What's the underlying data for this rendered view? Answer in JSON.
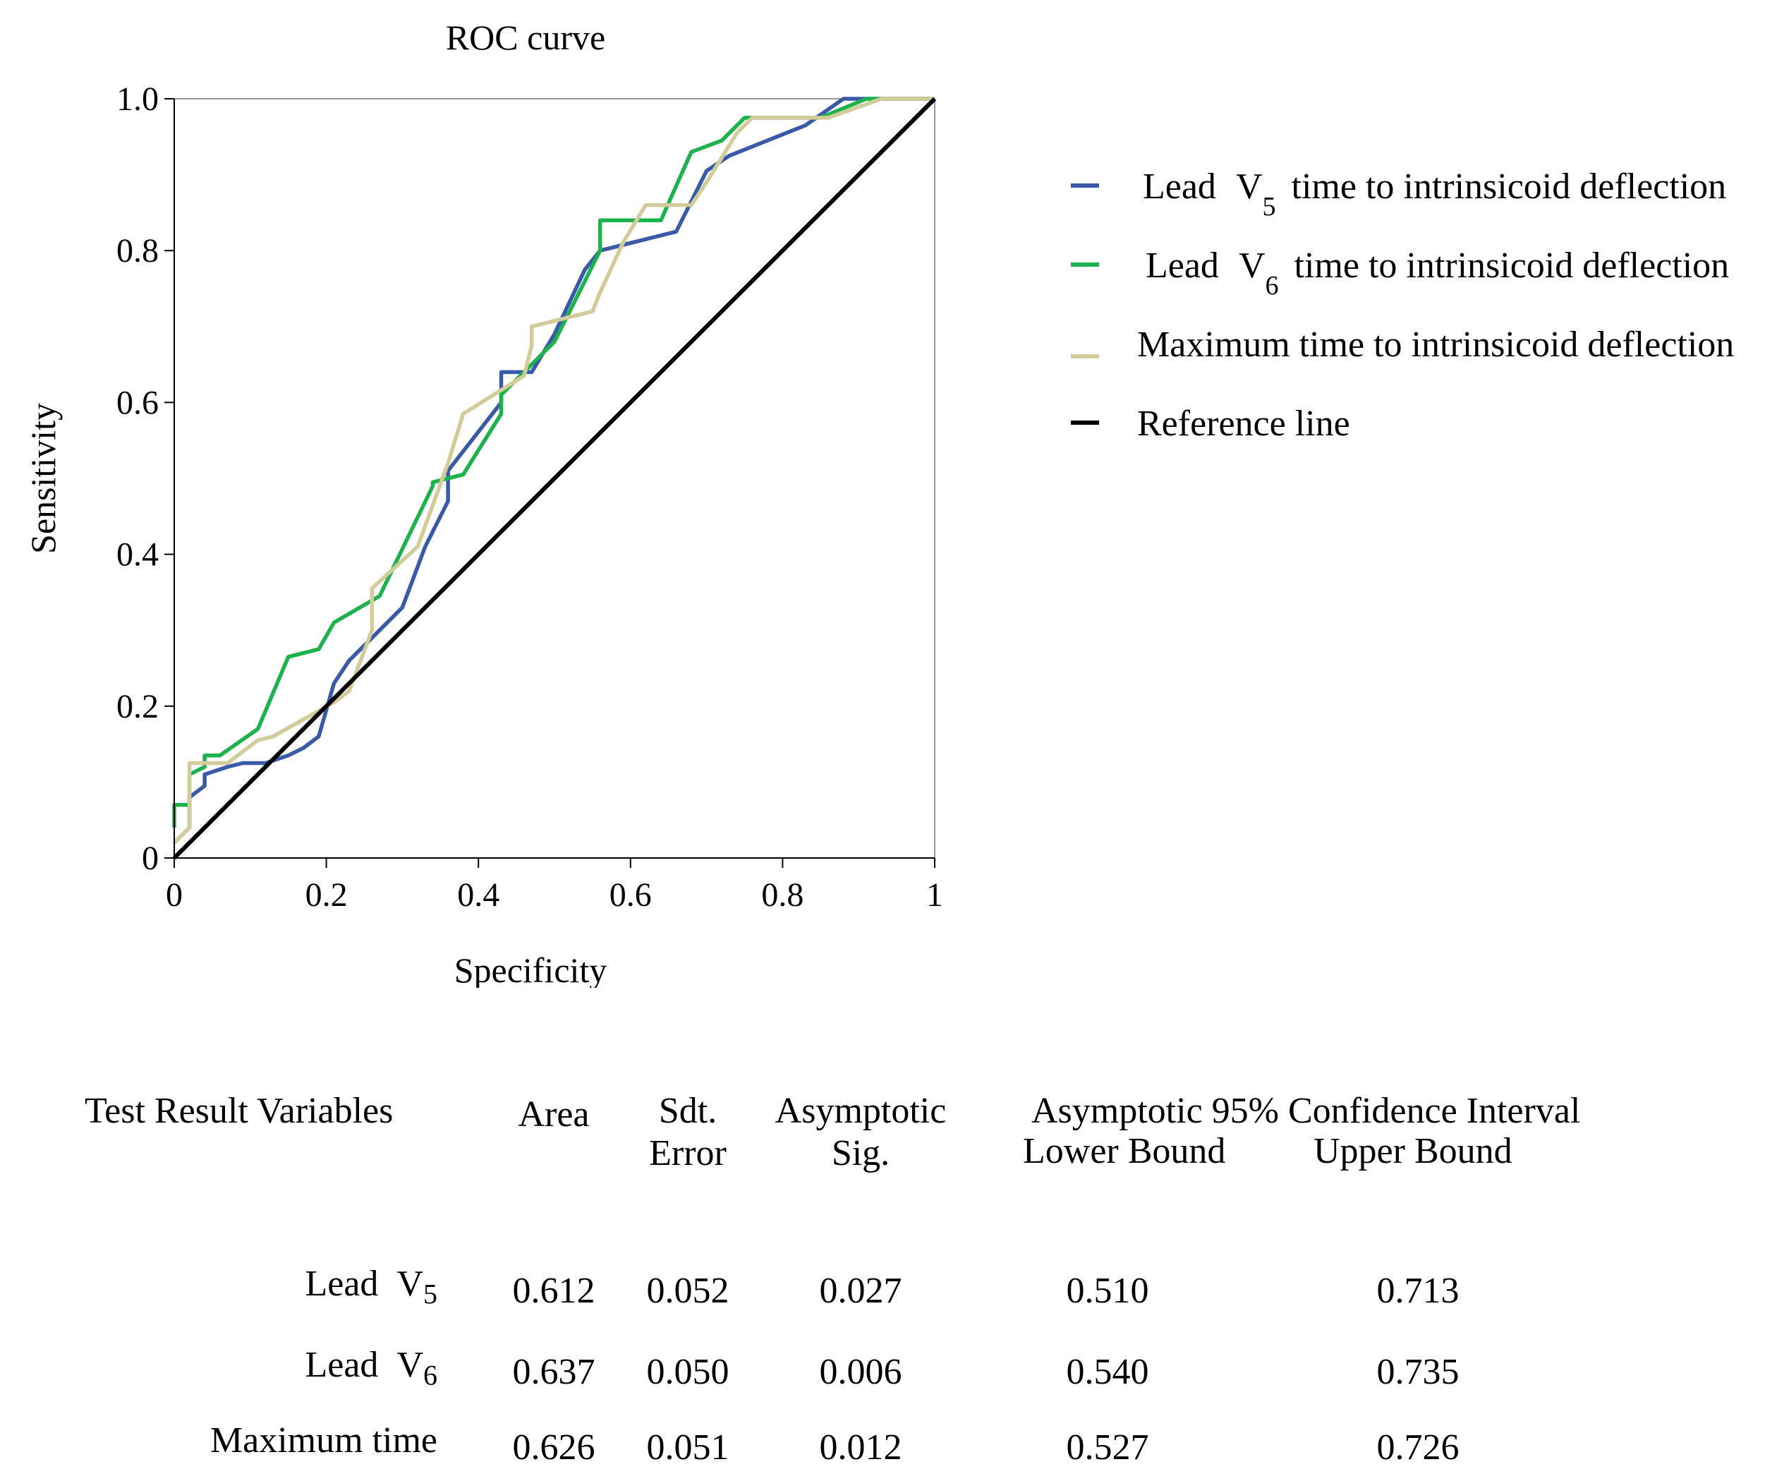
{
  "chart_data": {
    "type": "line",
    "title": "ROC curve",
    "xlabel": "Specificity",
    "ylabel": "Sensitivity",
    "xlim": [
      0,
      1
    ],
    "ylim": [
      0,
      1
    ],
    "x_ticks": [
      "0",
      "0.2",
      "0.4",
      "0.6",
      "0.8",
      "1"
    ],
    "y_ticks": [
      "0",
      "0.2",
      "0.4",
      "0.6",
      "0.8",
      "1.0"
    ],
    "grid": false,
    "legend_position": "right",
    "series": [
      {
        "name_prefix": "Lead",
        "name_symbol": "V",
        "name_subscript": "5",
        "name_suffix": "time to intrinsicoid deflection",
        "color": "#3A5AA8",
        "points": [
          [
            0,
            0.02
          ],
          [
            0.02,
            0.04
          ],
          [
            0.02,
            0.08
          ],
          [
            0.04,
            0.095
          ],
          [
            0.04,
            0.11
          ],
          [
            0.07,
            0.12
          ],
          [
            0.09,
            0.125
          ],
          [
            0.12,
            0.125
          ],
          [
            0.15,
            0.135
          ],
          [
            0.17,
            0.145
          ],
          [
            0.19,
            0.16
          ],
          [
            0.21,
            0.23
          ],
          [
            0.23,
            0.26
          ],
          [
            0.26,
            0.29
          ],
          [
            0.3,
            0.33
          ],
          [
            0.33,
            0.41
          ],
          [
            0.36,
            0.47
          ],
          [
            0.36,
            0.51
          ],
          [
            0.43,
            0.6
          ],
          [
            0.43,
            0.64
          ],
          [
            0.47,
            0.64
          ],
          [
            0.5,
            0.69
          ],
          [
            0.54,
            0.775
          ],
          [
            0.56,
            0.8
          ],
          [
            0.66,
            0.825
          ],
          [
            0.7,
            0.905
          ],
          [
            0.73,
            0.925
          ],
          [
            0.83,
            0.965
          ],
          [
            0.88,
            1.0
          ],
          [
            1,
            1
          ]
        ]
      },
      {
        "name_prefix": "Lead",
        "name_symbol": "V",
        "name_subscript": "6",
        "name_suffix": "time to intrinsicoid deflection",
        "color": "#1DB24B",
        "points": [
          [
            0,
            0.04
          ],
          [
            0,
            0.07
          ],
          [
            0.02,
            0.07
          ],
          [
            0.02,
            0.11
          ],
          [
            0.04,
            0.12
          ],
          [
            0.04,
            0.135
          ],
          [
            0.06,
            0.135
          ],
          [
            0.11,
            0.17
          ],
          [
            0.15,
            0.265
          ],
          [
            0.19,
            0.275
          ],
          [
            0.21,
            0.31
          ],
          [
            0.27,
            0.345
          ],
          [
            0.34,
            0.49
          ],
          [
            0.34,
            0.495
          ],
          [
            0.38,
            0.505
          ],
          [
            0.43,
            0.585
          ],
          [
            0.43,
            0.61
          ],
          [
            0.5,
            0.68
          ],
          [
            0.56,
            0.8
          ],
          [
            0.56,
            0.84
          ],
          [
            0.64,
            0.84
          ],
          [
            0.68,
            0.93
          ],
          [
            0.72,
            0.945
          ],
          [
            0.75,
            0.975
          ],
          [
            0.85,
            0.975
          ],
          [
            0.91,
            1.0
          ],
          [
            1,
            1
          ]
        ]
      },
      {
        "name_prefix": "Maximum time to intrinsicoid deflection",
        "name_symbol": "",
        "name_subscript": "",
        "name_suffix": "",
        "color": "#D2CC9A",
        "points": [
          [
            0,
            0.02
          ],
          [
            0.02,
            0.04
          ],
          [
            0.02,
            0.125
          ],
          [
            0.07,
            0.125
          ],
          [
            0.11,
            0.155
          ],
          [
            0.13,
            0.16
          ],
          [
            0.21,
            0.205
          ],
          [
            0.23,
            0.22
          ],
          [
            0.26,
            0.3
          ],
          [
            0.26,
            0.355
          ],
          [
            0.32,
            0.41
          ],
          [
            0.36,
            0.52
          ],
          [
            0.38,
            0.585
          ],
          [
            0.46,
            0.635
          ],
          [
            0.47,
            0.675
          ],
          [
            0.47,
            0.7
          ],
          [
            0.55,
            0.72
          ],
          [
            0.56,
            0.745
          ],
          [
            0.59,
            0.81
          ],
          [
            0.62,
            0.86
          ],
          [
            0.68,
            0.86
          ],
          [
            0.7,
            0.89
          ],
          [
            0.74,
            0.955
          ],
          [
            0.76,
            0.975
          ],
          [
            0.86,
            0.975
          ],
          [
            0.93,
            1.0
          ],
          [
            1,
            1
          ]
        ]
      },
      {
        "name_prefix": "Reference line",
        "name_symbol": "",
        "name_subscript": "",
        "name_suffix": "",
        "color": "#000000",
        "points": [
          [
            0,
            0
          ],
          [
            1,
            1
          ]
        ]
      }
    ]
  },
  "table": {
    "headers": {
      "variables": "Test Result Variables",
      "area": "Area",
      "std_error_line1": "Sdt.",
      "std_error_line2": "Error",
      "asymp_sig_line1": "Asymptotic",
      "asymp_sig_line2": "Sig.",
      "ci_title": "Asymptotic 95% Confidence Interval",
      "lower": "Lower Bound",
      "upper": "Upper Bound"
    },
    "rows": [
      {
        "label": "Lead",
        "symbol": "V",
        "subscript": "5",
        "area": "0.612",
        "std_error": "0.052",
        "sig": "0.027",
        "lower": "0.510",
        "upper": "0.713"
      },
      {
        "label": "Lead",
        "symbol": "V",
        "subscript": "6",
        "area": "0.637",
        "std_error": "0.050",
        "sig": "0.006",
        "lower": "0.540",
        "upper": "0.735"
      },
      {
        "label": "Maximum time",
        "symbol": "",
        "subscript": "",
        "area": "0.626",
        "std_error": "0.051",
        "sig": "0.012",
        "lower": "0.527",
        "upper": "0.726"
      }
    ]
  }
}
